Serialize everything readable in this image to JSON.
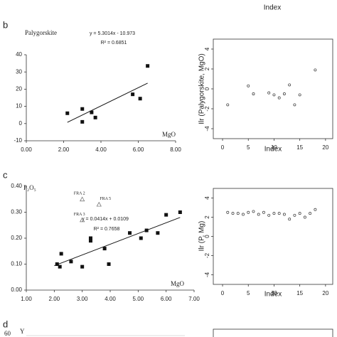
{
  "header_label": "Index",
  "panel_labels": [
    "b",
    "c",
    "d"
  ],
  "partial_text": [
    "60",
    "Y"
  ],
  "chart_data": [
    {
      "type": "scatter",
      "y_label": "Palygorskite",
      "x_label": "MgO",
      "equation": "y = 5.3014x - 10.973",
      "r2": "R² = 0.6851",
      "xlim": [
        0,
        8
      ],
      "xticks": [
        {
          "value": 0,
          "label": "0.00"
        },
        {
          "value": 2,
          "label": "2.00"
        },
        {
          "value": 4,
          "label": "4.00"
        },
        {
          "value": 6,
          "label": "6.00"
        },
        {
          "value": 8,
          "label": "8.00"
        }
      ],
      "ylim": [
        -10,
        40
      ],
      "yticks": [
        -10,
        0,
        10,
        20,
        30,
        40
      ],
      "series": [
        {
          "marker": "square",
          "color": "#111111",
          "x": [
            2.2,
            3.0,
            3.0,
            3.5,
            3.7,
            5.7,
            6.1,
            6.5
          ],
          "values": [
            6,
            8.5,
            1,
            6.5,
            3.5,
            17,
            14.5,
            33.5
          ]
        }
      ],
      "trendline": {
        "color": "#111111",
        "x": [
          2.2,
          6.5
        ],
        "values": [
          0.7,
          23.5
        ]
      }
    },
    {
      "type": "scatter",
      "y_label": "Ilr (Palygorskite, MgO)",
      "x_label": "Index",
      "xlim": [
        -1.8,
        21.4
      ],
      "xticks": [
        0,
        5,
        10,
        15,
        20
      ],
      "ylim": [
        -5,
        5
      ],
      "yticks": [
        -4,
        -2,
        0,
        2,
        4
      ],
      "series": [
        {
          "marker": "circle",
          "color": "#333333",
          "x": [
            1,
            5,
            6,
            9,
            10,
            11,
            12,
            13,
            14,
            15,
            18
          ],
          "values": [
            -1.6,
            0.3,
            -0.5,
            -0.4,
            -0.6,
            -0.9,
            -0.5,
            0.4,
            -1.6,
            -0.6,
            1.9
          ]
        }
      ]
    },
    {
      "type": "scatter",
      "y_label": "P₂O₅",
      "x_label": "MgO",
      "equation": "y = 0.0414x + 0.0109",
      "r2": "R² = 0.7658",
      "xlim": [
        1,
        7
      ],
      "xticks": [
        {
          "value": 1,
          "label": "1.00"
        },
        {
          "value": 2,
          "label": "2.00"
        },
        {
          "value": 3,
          "label": "3.00"
        },
        {
          "value": 4,
          "label": "4.00"
        },
        {
          "value": 5,
          "label": "5.00"
        },
        {
          "value": 6,
          "label": "6.00"
        },
        {
          "value": 7,
          "label": "7.00"
        }
      ],
      "ylim": [
        0,
        0.4
      ],
      "yticks": [
        {
          "value": 0,
          "label": "0.00"
        },
        {
          "value": 0.1,
          "label": "0.10"
        },
        {
          "value": 0.2,
          "label": "0.20"
        },
        {
          "value": 0.3,
          "label": "0.30"
        },
        {
          "value": 0.4,
          "label": "0.40"
        }
      ],
      "series": [
        {
          "marker": "square",
          "color": "#111111",
          "x": [
            2.1,
            2.2,
            2.25,
            2.6,
            3.0,
            3.3,
            3.3,
            3.8,
            3.95,
            4.7,
            5.1,
            5.3,
            5.7,
            6.0,
            6.5
          ],
          "values": [
            0.1,
            0.09,
            0.14,
            0.11,
            0.09,
            0.19,
            0.2,
            0.16,
            0.1,
            0.22,
            0.2,
            0.23,
            0.22,
            0.29,
            0.3
          ]
        },
        {
          "marker": "triangle",
          "color": "#666666",
          "x": [
            3.0,
            3.6,
            3.0
          ],
          "values": [
            0.35,
            0.33,
            0.27
          ],
          "labels": [
            "FRA 2",
            "FRA 5",
            "FRA 3"
          ]
        }
      ],
      "trendline": {
        "color": "#111111",
        "x": [
          2.0,
          6.5
        ],
        "values": [
          0.094,
          0.28
        ]
      }
    },
    {
      "type": "scatter",
      "y_label": "Ilr (P, Mg)",
      "x_label": "Index",
      "xlim": [
        -1.8,
        21.4
      ],
      "xticks": [
        0,
        5,
        10,
        15,
        20
      ],
      "ylim": [
        -5,
        5
      ],
      "yticks": [
        -4,
        -2,
        0,
        2,
        4
      ],
      "series": [
        {
          "marker": "circle",
          "color": "#333333",
          "x": [
            1,
            2,
            3,
            4,
            5,
            6,
            7,
            8,
            9,
            10,
            11,
            12,
            13,
            14,
            15,
            16,
            17,
            18
          ],
          "values": [
            2.5,
            2.4,
            2.4,
            2.3,
            2.5,
            2.6,
            2.3,
            2.5,
            2.2,
            2.4,
            2.4,
            2.3,
            1.8,
            2.2,
            2.4,
            2.0,
            2.4,
            2.8
          ]
        }
      ]
    }
  ]
}
